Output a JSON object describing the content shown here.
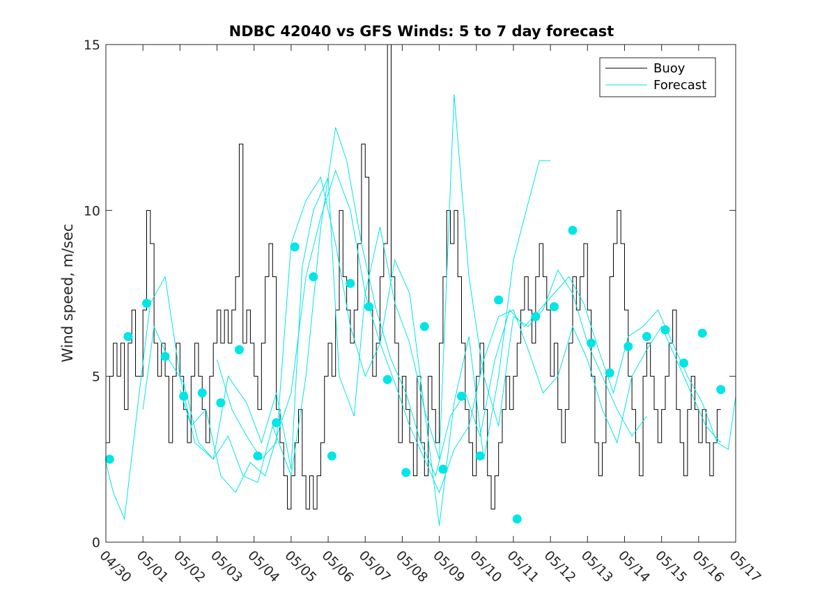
{
  "chart_data": {
    "type": "line",
    "title": "NDBC 42040 vs GFS Winds: 5 to 7 day forecast",
    "ylabel": "Wind speed, m/sec",
    "xlabel": "",
    "ylim": [
      0,
      15
    ],
    "yticks": [
      "0",
      "5",
      "10",
      "15"
    ],
    "xlim": [
      0,
      17
    ],
    "xticks": [
      "04/30",
      "05/01",
      "05/02",
      "05/03",
      "05/04",
      "05/05",
      "05/06",
      "05/07",
      "05/08",
      "05/09",
      "05/10",
      "05/11",
      "05/12",
      "05/13",
      "05/14",
      "05/15",
      "05/16",
      "05/17"
    ],
    "legend": {
      "placement": "top-right",
      "entries": [
        "Buoy",
        "Forecast"
      ]
    },
    "colors": {
      "buoy": "#000000",
      "forecast": "#00e5e5",
      "axes": "#262626"
    },
    "series": [
      {
        "name": "Buoy",
        "style": "step",
        "x": [
          0,
          0.1,
          0.2,
          0.3,
          0.4,
          0.5,
          0.6,
          0.7,
          0.8,
          0.9,
          1.0,
          1.1,
          1.2,
          1.3,
          1.4,
          1.5,
          1.6,
          1.7,
          1.8,
          1.9,
          2.0,
          2.1,
          2.2,
          2.3,
          2.4,
          2.5,
          2.6,
          2.7,
          2.8,
          2.9,
          3.0,
          3.1,
          3.2,
          3.3,
          3.4,
          3.5,
          3.6,
          3.7,
          3.8,
          3.9,
          4.0,
          4.1,
          4.2,
          4.3,
          4.4,
          4.5,
          4.6,
          4.7,
          4.8,
          4.9,
          5.0,
          5.1,
          5.2,
          5.3,
          5.4,
          5.5,
          5.6,
          5.7,
          5.8,
          5.9,
          6.0,
          6.1,
          6.2,
          6.3,
          6.4,
          6.5,
          6.6,
          6.7,
          6.8,
          6.9,
          7.0,
          7.1,
          7.2,
          7.3,
          7.4,
          7.5,
          7.6,
          7.7,
          7.8,
          7.9,
          8.0,
          8.1,
          8.2,
          8.3,
          8.4,
          8.5,
          8.6,
          8.7,
          8.8,
          8.9,
          9.0,
          9.1,
          9.2,
          9.3,
          9.4,
          9.5,
          9.6,
          9.7,
          9.8,
          9.9,
          10.0,
          10.1,
          10.2,
          10.3,
          10.4,
          10.5,
          10.6,
          10.7,
          10.8,
          10.9,
          11.0,
          11.1,
          11.2,
          11.3,
          11.4,
          11.5,
          11.6,
          11.7,
          11.8,
          11.9,
          12.0,
          12.1,
          12.2,
          12.3,
          12.4,
          12.5,
          12.6,
          12.7,
          12.8,
          12.9,
          13.0,
          13.1,
          13.2,
          13.3,
          13.4,
          13.5,
          13.6,
          13.7,
          13.8,
          13.9,
          14.0,
          14.1,
          14.2,
          14.3,
          14.4,
          14.5,
          14.6,
          14.7,
          14.8,
          14.9,
          15.0,
          15.1,
          15.2,
          15.3,
          15.4,
          15.5,
          15.6,
          15.7,
          15.8,
          15.9,
          16.0,
          16.1,
          16.2,
          16.3,
          16.4,
          16.5
        ],
        "values": [
          3,
          5,
          6,
          5,
          6,
          4,
          6,
          7,
          5,
          5,
          7,
          10,
          9,
          6,
          5,
          6,
          5,
          3,
          5,
          6,
          5,
          4,
          3,
          5,
          6,
          5,
          4,
          3,
          5,
          6,
          7,
          6,
          7,
          6,
          7,
          8,
          12,
          6,
          7,
          6,
          5,
          4,
          6,
          8,
          9,
          8,
          4,
          3,
          2,
          1,
          2,
          3,
          4,
          2,
          1,
          2,
          1,
          2,
          3,
          5,
          6,
          5,
          7,
          10,
          8,
          7,
          6,
          7,
          9,
          12,
          11,
          7,
          5,
          6,
          8,
          9,
          15,
          8,
          6,
          3,
          5,
          4,
          3,
          2,
          5,
          3,
          2,
          5,
          4,
          3,
          6,
          8,
          10,
          9,
          10,
          8,
          6,
          4,
          3,
          2,
          5,
          6,
          4,
          2,
          1,
          2,
          3,
          4,
          5,
          4,
          5,
          6,
          7,
          8,
          7,
          6,
          8,
          9,
          8,
          7,
          5,
          6,
          4,
          3,
          4,
          6,
          8,
          7,
          8,
          9,
          7,
          5,
          3,
          2,
          3,
          5,
          8,
          9,
          10,
          9,
          7,
          5,
          4,
          3,
          2,
          5,
          6,
          5,
          4,
          3,
          4,
          5,
          6,
          7,
          4,
          3,
          2,
          4,
          5,
          4,
          3,
          4,
          3,
          2,
          3,
          4
        ]
      },
      {
        "name": "Forecast",
        "lines": [
          {
            "x": [
              0,
              0.2,
              0.5,
              0.9,
              1.2,
              1.6,
              2.0,
              2.4,
              2.9,
              3.3,
              3.8,
              4.2,
              4.6,
              5.0,
              5.3,
              5.6,
              6.0,
              6.3,
              6.7,
              7.0,
              7.4,
              7.8,
              8.2,
              8.6,
              9.0,
              9.4,
              9.8,
              10.2,
              10.6,
              11.0,
              11.3,
              11.7,
              12.0
            ],
            "y": [
              2.4,
              1.5,
              0.7,
              4.5,
              7.2,
              8.0,
              5.0,
              3.0,
              2.5,
              5.0,
              4.2,
              3.0,
              4.5,
              2.2,
              8.3,
              10.0,
              11.0,
              5.0,
              3.8,
              7.5,
              9.5,
              7.2,
              6.0,
              4.0,
              0.5,
              4.2,
              6.2,
              2.5,
              5.0,
              8.5,
              9.8,
              11.5,
              11.5
            ]
          },
          {
            "x": [
              1.0,
              1.3,
              1.7,
              2.1,
              2.5,
              2.9,
              3.3,
              3.7,
              4.1,
              4.5,
              5.0,
              5.4,
              5.8,
              6.2,
              6.5,
              6.9,
              7.3,
              7.7,
              8.1,
              8.5,
              8.9,
              9.3,
              9.7,
              10.1,
              10.5,
              10.9,
              11.3,
              11.7,
              12.1,
              12.5,
              12.9,
              13.3,
              13.7,
              14.1,
              14.5,
              14.9,
              15.3,
              15.7,
              16.1,
              16.5,
              16.8,
              17.0
            ],
            "y": [
              4.0,
              6.5,
              5.5,
              4.8,
              3.0,
              2.5,
              3.2,
              2.0,
              1.8,
              3.5,
              2.0,
              5.0,
              9.5,
              12.5,
              11.5,
              9.0,
              7.0,
              5.5,
              4.5,
              3.0,
              2.0,
              3.8,
              4.5,
              3.2,
              5.5,
              7.0,
              6.5,
              7.0,
              7.5,
              8.0,
              7.2,
              5.8,
              4.5,
              6.2,
              6.5,
              7.0,
              6.0,
              5.0,
              4.2,
              3.0,
              2.8,
              4.4
            ]
          },
          {
            "x": [
              2.0,
              2.3,
              2.7,
              3.1,
              3.5,
              3.9,
              4.3,
              4.7,
              5.0,
              5.4,
              5.8,
              6.2,
              6.6,
              7.0,
              7.4,
              7.8,
              8.2,
              8.6,
              9.0,
              9.4,
              9.8,
              10.2,
              10.6,
              11.0,
              11.4,
              11.8,
              12.2,
              12.6,
              13.0,
              13.4,
              13.8,
              14.2,
              14.6,
              15.0,
              15.4,
              15.8,
              16.2,
              16.6
            ],
            "y": [
              4.6,
              3.5,
              4.0,
              2.0,
              1.5,
              2.4,
              2.0,
              3.5,
              4.5,
              8.0,
              9.8,
              11.2,
              10.0,
              7.5,
              6.0,
              4.8,
              3.5,
              2.5,
              1.5,
              2.8,
              3.5,
              5.5,
              6.8,
              7.0,
              5.8,
              4.5,
              5.0,
              6.5,
              5.5,
              4.0,
              3.0,
              5.0,
              5.8,
              6.5,
              5.5,
              4.5,
              3.5,
              3.0
            ]
          },
          {
            "x": [
              3.0,
              3.4,
              3.8,
              4.2,
              4.6,
              5.0,
              5.4,
              5.8,
              6.2,
              6.6,
              7.0,
              7.4,
              7.8,
              8.2,
              8.6,
              9.0,
              9.4,
              9.8,
              10.2,
              10.6,
              11.0,
              11.4,
              11.8,
              12.2,
              12.6,
              13.0,
              13.4,
              13.8,
              14.2,
              14.6
            ],
            "y": [
              5.5,
              4.0,
              3.2,
              2.5,
              3.0,
              9.0,
              10.3,
              11.0,
              9.0,
              6.5,
              5.0,
              6.0,
              8.5,
              7.5,
              4.0,
              2.5,
              13.5,
              8.0,
              5.0,
              3.5,
              6.8,
              6.5,
              7.0,
              8.2,
              7.5,
              6.0,
              5.0,
              4.0,
              3.2,
              3.8
            ]
          }
        ]
      },
      {
        "name": "Forecast markers",
        "style": "markers",
        "x": [
          0.1,
          0.6,
          1.1,
          1.6,
          2.1,
          2.6,
          3.1,
          3.6,
          4.1,
          4.6,
          5.1,
          5.6,
          6.1,
          6.6,
          7.1,
          7.6,
          8.1,
          8.6,
          9.1,
          9.6,
          10.1,
          10.6,
          11.1,
          11.6,
          12.1,
          12.6,
          13.1,
          13.6,
          14.1,
          14.6,
          15.1,
          15.6,
          16.1,
          16.6
        ],
        "values": [
          2.5,
          6.2,
          7.2,
          5.6,
          4.4,
          4.5,
          4.2,
          5.8,
          2.6,
          3.6,
          8.9,
          8.0,
          2.6,
          7.8,
          7.1,
          4.9,
          2.1,
          6.5,
          2.2,
          4.4,
          2.6,
          7.3,
          0.7,
          6.8,
          7.1,
          9.4,
          6.0,
          5.1,
          5.9,
          6.2,
          6.4,
          5.4,
          6.3,
          4.6
        ]
      }
    ]
  }
}
